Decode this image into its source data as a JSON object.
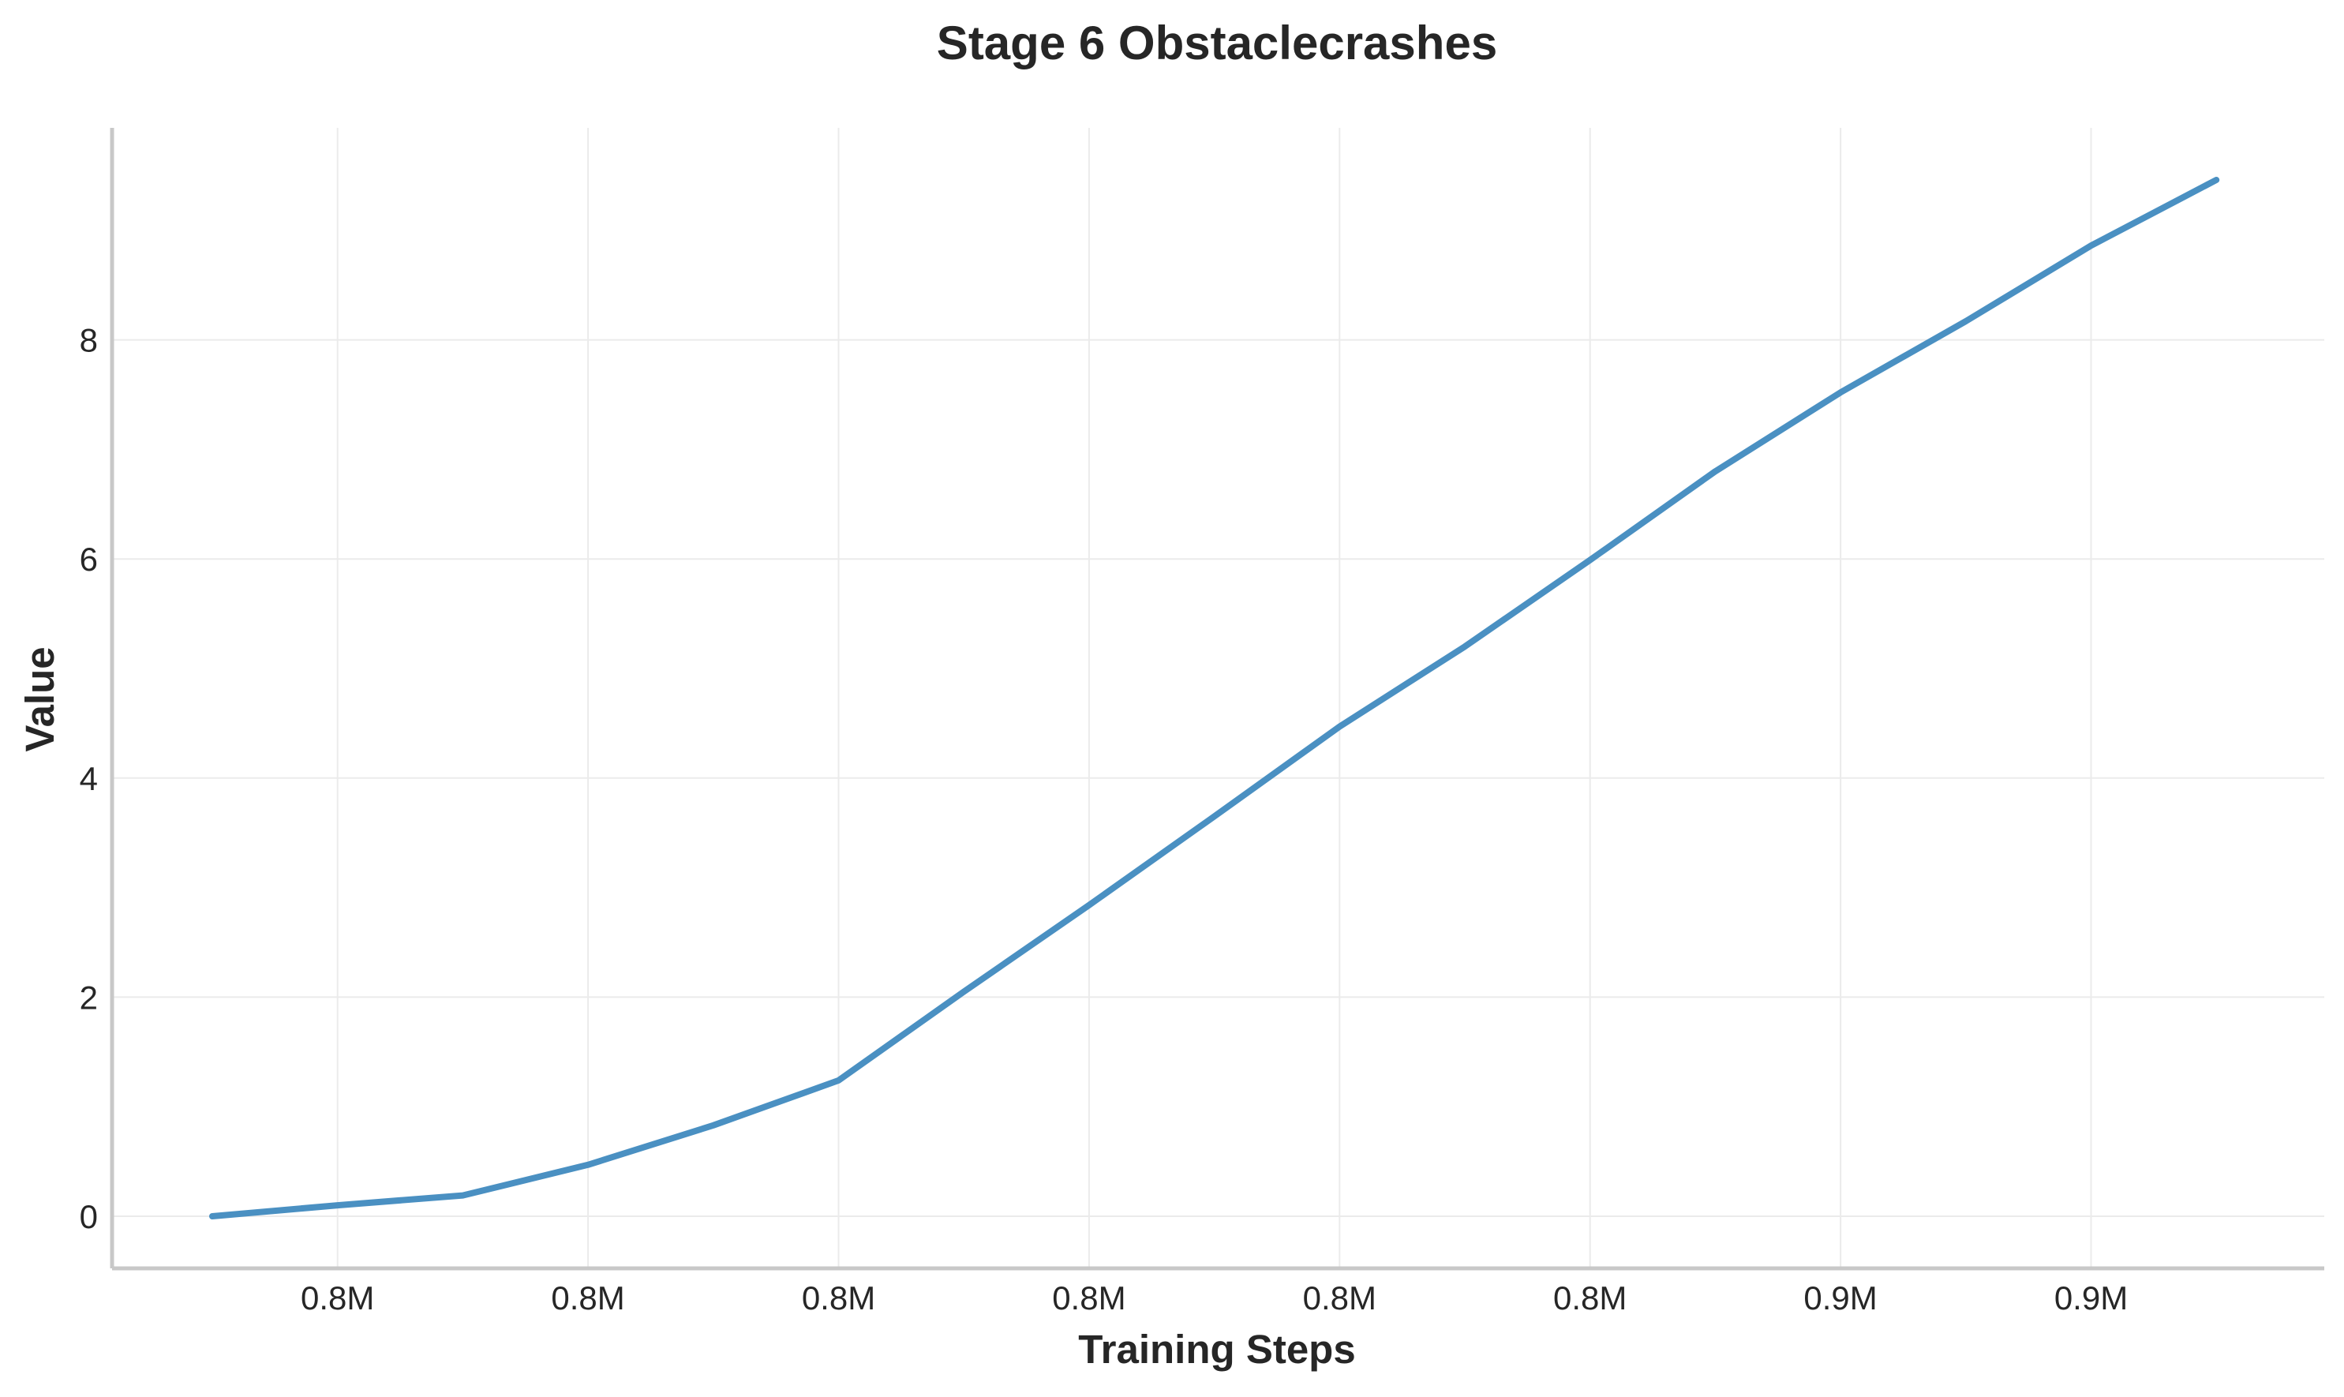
{
  "chart_data": {
    "type": "line",
    "title": "Stage 6 Obstaclecrashes",
    "xlabel": "Training Steps",
    "ylabel": "Value",
    "x_tick_labels": [
      "0.8M",
      "0.8M",
      "0.8M",
      "0.8M",
      "0.8M",
      "0.8M",
      "0.9M",
      "0.9M"
    ],
    "y_ticks": [
      0,
      2,
      4,
      6,
      8
    ],
    "y_tick_labels": [
      "0",
      "2",
      "4",
      "6",
      "8"
    ],
    "xlim": [
      0,
      17.6
    ],
    "ylim": [
      -0.45,
      9.9
    ],
    "grid": true,
    "line_color": "#4a90c2",
    "series": [
      {
        "x": [
          0,
          1,
          2,
          3,
          4,
          5,
          6,
          7,
          8,
          9,
          10,
          11,
          12,
          13,
          14,
          15,
          16
        ],
        "values": [
          0.0,
          0.1,
          0.19,
          0.47,
          0.83,
          1.24,
          2.05,
          2.84,
          3.65,
          4.47,
          5.2,
          5.99,
          6.8,
          7.52,
          8.17,
          8.86,
          9.46
        ]
      }
    ]
  }
}
